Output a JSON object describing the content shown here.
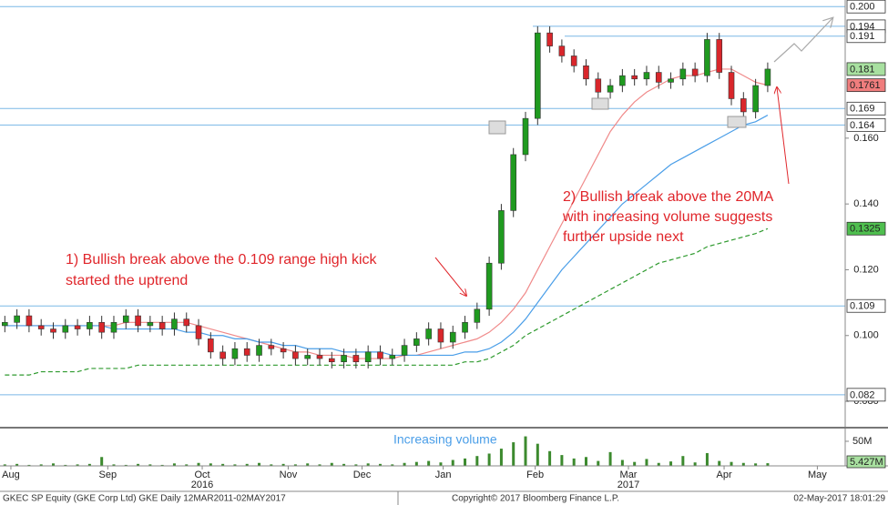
{
  "chart_data": {
    "type": "candlestick",
    "open": [
      0.103,
      0.104,
      0.106,
      0.103,
      0.102,
      0.101,
      0.103,
      0.102,
      0.104,
      0.101,
      0.104,
      0.106,
      0.103,
      0.104,
      0.102,
      0.105,
      0.103,
      0.099,
      0.095,
      0.093,
      0.096,
      0.094,
      0.097,
      0.096,
      0.095,
      0.093,
      0.094,
      0.093,
      0.092,
      0.094,
      0.092,
      0.095,
      0.093,
      0.094,
      0.097,
      0.099,
      0.102,
      0.098,
      0.101,
      0.104,
      0.108,
      0.122,
      0.138,
      0.155,
      0.166,
      0.192,
      0.188,
      0.185,
      0.182,
      0.178,
      0.174,
      0.176,
      0.179,
      0.178,
      0.18,
      0.177,
      0.178,
      0.181,
      0.179,
      0.19,
      0.18,
      0.172,
      0.168,
      0.176
    ],
    "high": [
      0.106,
      0.108,
      0.108,
      0.105,
      0.104,
      0.105,
      0.105,
      0.106,
      0.106,
      0.106,
      0.108,
      0.108,
      0.106,
      0.106,
      0.107,
      0.107,
      0.105,
      0.101,
      0.097,
      0.098,
      0.098,
      0.099,
      0.099,
      0.098,
      0.097,
      0.096,
      0.096,
      0.095,
      0.096,
      0.096,
      0.097,
      0.097,
      0.096,
      0.099,
      0.101,
      0.104,
      0.104,
      0.103,
      0.106,
      0.11,
      0.124,
      0.14,
      0.157,
      0.168,
      0.194,
      0.194,
      0.19,
      0.187,
      0.184,
      0.18,
      0.178,
      0.181,
      0.181,
      0.182,
      0.182,
      0.18,
      0.183,
      0.183,
      0.192,
      0.192,
      0.182,
      0.174,
      0.178,
      0.183
    ],
    "low": [
      0.101,
      0.102,
      0.101,
      0.1,
      0.099,
      0.099,
      0.1,
      0.1,
      0.099,
      0.099,
      0.102,
      0.101,
      0.101,
      0.1,
      0.1,
      0.101,
      0.097,
      0.093,
      0.091,
      0.091,
      0.092,
      0.092,
      0.094,
      0.093,
      0.091,
      0.091,
      0.091,
      0.09,
      0.09,
      0.09,
      0.09,
      0.091,
      0.091,
      0.092,
      0.095,
      0.097,
      0.096,
      0.096,
      0.099,
      0.102,
      0.106,
      0.12,
      0.136,
      0.153,
      0.164,
      0.186,
      0.183,
      0.18,
      0.176,
      0.172,
      0.172,
      0.174,
      0.176,
      0.176,
      0.175,
      0.175,
      0.176,
      0.177,
      0.177,
      0.178,
      0.17,
      0.166,
      0.166,
      0.174
    ],
    "close": [
      0.104,
      0.106,
      0.103,
      0.102,
      0.101,
      0.103,
      0.102,
      0.104,
      0.101,
      0.104,
      0.106,
      0.103,
      0.104,
      0.102,
      0.105,
      0.103,
      0.099,
      0.095,
      0.093,
      0.096,
      0.094,
      0.097,
      0.096,
      0.095,
      0.093,
      0.094,
      0.093,
      0.092,
      0.094,
      0.092,
      0.095,
      0.093,
      0.094,
      0.097,
      0.099,
      0.102,
      0.098,
      0.101,
      0.104,
      0.108,
      0.122,
      0.138,
      0.155,
      0.166,
      0.192,
      0.188,
      0.185,
      0.182,
      0.178,
      0.174,
      0.176,
      0.179,
      0.178,
      0.18,
      0.177,
      0.178,
      0.181,
      0.179,
      0.19,
      0.18,
      0.172,
      0.168,
      0.176,
      0.181
    ],
    "up_color": "#1f9a1f",
    "down_color": "#d9262b",
    "series": [
      {
        "color": "#f08a8a",
        "style": "solid",
        "values": [
          0.103,
          0.103,
          0.103,
          0.103,
          0.103,
          0.103,
          0.103,
          0.103,
          0.103,
          0.103,
          0.104,
          0.104,
          0.104,
          0.104,
          0.104,
          0.104,
          0.103,
          0.102,
          0.101,
          0.1,
          0.099,
          0.098,
          0.097,
          0.096,
          0.095,
          0.095,
          0.094,
          0.094,
          0.094,
          0.093,
          0.093,
          0.093,
          0.093,
          0.094,
          0.094,
          0.095,
          0.096,
          0.097,
          0.098,
          0.099,
          0.101,
          0.104,
          0.108,
          0.113,
          0.12,
          0.127,
          0.134,
          0.141,
          0.148,
          0.155,
          0.162,
          0.167,
          0.171,
          0.174,
          0.176,
          0.178,
          0.179,
          0.179,
          0.18,
          0.181,
          0.181,
          0.179,
          0.177,
          0.1761
        ]
      },
      {
        "color": "#4a9ee8",
        "style": "solid",
        "values": [
          0.103,
          0.103,
          0.103,
          0.103,
          0.103,
          0.103,
          0.103,
          0.103,
          0.103,
          0.102,
          0.102,
          0.102,
          0.102,
          0.102,
          0.102,
          0.101,
          0.101,
          0.1,
          0.1,
          0.099,
          0.099,
          0.098,
          0.098,
          0.097,
          0.097,
          0.096,
          0.096,
          0.096,
          0.095,
          0.095,
          0.095,
          0.095,
          0.094,
          0.094,
          0.094,
          0.094,
          0.094,
          0.094,
          0.095,
          0.095,
          0.096,
          0.098,
          0.101,
          0.105,
          0.11,
          0.115,
          0.12,
          0.124,
          0.128,
          0.132,
          0.136,
          0.14,
          0.143,
          0.146,
          0.149,
          0.152,
          0.154,
          0.156,
          0.158,
          0.16,
          0.162,
          0.164,
          0.165,
          0.167
        ]
      },
      {
        "color": "#2e9a2e",
        "style": "dashed",
        "values": [
          0.088,
          0.088,
          0.088,
          0.089,
          0.089,
          0.089,
          0.089,
          0.09,
          0.09,
          0.09,
          0.09,
          0.091,
          0.091,
          0.091,
          0.091,
          0.091,
          0.091,
          0.091,
          0.091,
          0.091,
          0.091,
          0.091,
          0.091,
          0.091,
          0.091,
          0.091,
          0.091,
          0.091,
          0.091,
          0.091,
          0.091,
          0.091,
          0.091,
          0.091,
          0.091,
          0.091,
          0.091,
          0.091,
          0.092,
          0.092,
          0.093,
          0.095,
          0.097,
          0.1,
          0.102,
          0.104,
          0.106,
          0.108,
          0.11,
          0.112,
          0.114,
          0.116,
          0.118,
          0.12,
          0.122,
          0.123,
          0.124,
          0.125,
          0.127,
          0.128,
          0.129,
          0.13,
          0.131,
          0.1325
        ]
      }
    ],
    "last_label_colors": {
      "close": "#a8e0a0",
      "series0": "#f07d7d",
      "series2": "#4fbf4f"
    },
    "ylim": [
      0.072,
      0.202
    ],
    "yticks": [
      {
        "value": 0.08,
        "label": "0.080"
      },
      {
        "value": 0.1,
        "label": "0.100"
      },
      {
        "value": 0.12,
        "label": "0.120"
      },
      {
        "value": 0.14,
        "label": "0.140"
      },
      {
        "value": 0.16,
        "label": "0.160"
      }
    ],
    "levels": [
      {
        "value": 0.2,
        "label": "0.200"
      },
      0.194,
      0.191,
      0.169,
      0.164,
      0.109,
      0.082
    ],
    "level_color": "#7ab8e6",
    "xlim": [
      -0.4,
      69.4
    ],
    "xticks": [
      {
        "value": 0.5,
        "label": "Aug"
      },
      {
        "value": 8.5,
        "label": "Sep"
      },
      {
        "value": 16.3,
        "label": "Oct"
      },
      {
        "value": 23.4,
        "label": "Nov"
      },
      {
        "value": 29.5,
        "label": "Dec"
      },
      {
        "value": 36.2,
        "label": "Jan"
      },
      {
        "value": 43.8,
        "label": "Feb"
      },
      {
        "value": 51.5,
        "label": "Mar"
      },
      {
        "value": 59.4,
        "label": "Apr"
      },
      {
        "value": 67.1,
        "label": "May"
      }
    ],
    "year_ticks": [
      {
        "value": 16.3,
        "label": "2016"
      },
      {
        "value": 51.5,
        "label": "2017"
      }
    ],
    "volume": {
      "color": "#3c8a2e",
      "ylim": [
        0,
        74
      ],
      "yticks": [
        {
          "value": 50,
          "label": "50M"
        }
      ],
      "last_value_label": "5.427M",
      "values": [
        3,
        4,
        2,
        3,
        5,
        2,
        3,
        4,
        18,
        3,
        2,
        4,
        3,
        2,
        5,
        3,
        6,
        5,
        4,
        3,
        4,
        6,
        3,
        4,
        3,
        5,
        3,
        6,
        4,
        3,
        5,
        4,
        3,
        6,
        8,
        10,
        7,
        12,
        15,
        20,
        25,
        35,
        48,
        60,
        45,
        30,
        22,
        15,
        18,
        10,
        28,
        12,
        8,
        14,
        6,
        9,
        20,
        7,
        26,
        10,
        8,
        6,
        5,
        5.427
      ]
    },
    "annotations": [
      {
        "lines": [
          "1) Bullish break above the 0.109 range high kick",
          "started the uptrend"
        ]
      },
      {
        "lines": [
          "2) Bullish break above the 20MA",
          "with increasing volume suggests",
          "further upside next"
        ]
      },
      {
        "lines": [
          "Increasing volume"
        ]
      }
    ]
  },
  "footer": {
    "left": "GKEC SP Equity (GKE Corp Ltd) GKE  Daily 12MAR2011-02MAY2017",
    "center": "Copyright© 2017 Bloomberg Finance L.P.",
    "right": "02-May-2017 18:01:29"
  }
}
